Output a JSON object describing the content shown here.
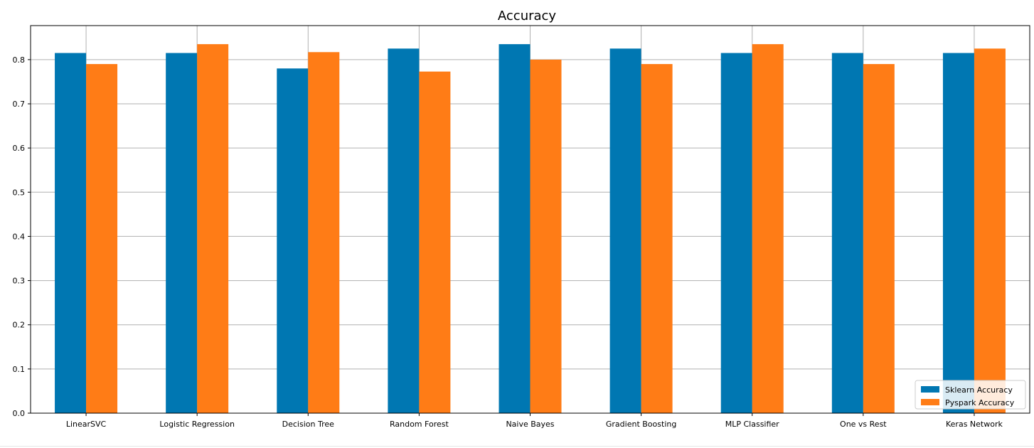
{
  "chart_data": {
    "type": "bar",
    "title": "Accuracy",
    "xlabel": "",
    "ylabel": "",
    "categories": [
      "LinearSVC",
      "Logistic Regression",
      "Decision Tree",
      "Random Forest",
      "Naive Bayes",
      "Gradient Boosting",
      "MLP Classifier",
      "One vs Rest",
      "Keras Network"
    ],
    "series": [
      {
        "name": "Sklearn Accuracy",
        "color": "#0077b2",
        "values": [
          0.815,
          0.815,
          0.78,
          0.825,
          0.835,
          0.825,
          0.815,
          0.815,
          0.815
        ]
      },
      {
        "name": "Pyspark Accuracy",
        "color": "#ff7c16",
        "values": [
          0.79,
          0.835,
          0.817,
          0.773,
          0.8,
          0.79,
          0.835,
          0.79,
          0.825
        ]
      }
    ],
    "ylim": [
      0,
      0.877
    ],
    "yticks": [
      "0.0",
      "0.1",
      "0.2",
      "0.3",
      "0.4",
      "0.5",
      "0.6",
      "0.7",
      "0.8"
    ],
    "grid": true,
    "legend_position": "lower-right"
  }
}
